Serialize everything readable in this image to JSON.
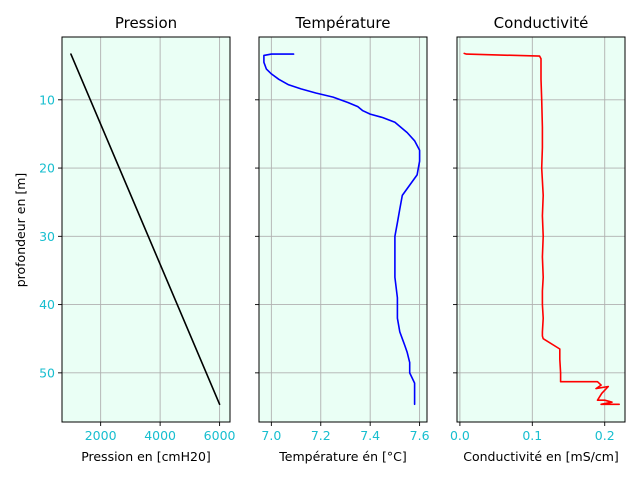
{
  "chart_data": [
    {
      "type": "line",
      "title": "Pression",
      "xlabel": "Pression en [cmH20]",
      "ylabel": "profondeur en [m]",
      "xlim": [
        700,
        6350
      ],
      "ylim": [
        57.2,
        0.8
      ],
      "y_inverted": true,
      "xticks": [
        2000,
        4000,
        6000
      ],
      "yticks": [
        10,
        20,
        30,
        40,
        50
      ],
      "show_ytick_labels": true,
      "grid": true,
      "background_color": "#eafff5",
      "tick_label_color": "#17becf",
      "series": [
        {
          "color": "#000000",
          "x": [
            1000,
            6000
          ],
          "y": [
            3.3,
            54.6
          ]
        }
      ]
    },
    {
      "type": "line",
      "title": "Température",
      "xlabel": "Température én [°C]",
      "ylabel": "",
      "xlim": [
        6.95,
        7.63
      ],
      "ylim": [
        57.2,
        0.8
      ],
      "y_inverted": true,
      "xticks": [
        7.0,
        7.2,
        7.4,
        7.6
      ],
      "xtick_labels": [
        "7.0",
        "7.2",
        "7.4",
        "7.6"
      ],
      "yticks": [
        10,
        20,
        30,
        40,
        50
      ],
      "show_ytick_labels": false,
      "grid": true,
      "background_color": "#eafff5",
      "tick_label_color": "#17becf",
      "series": [
        {
          "color": "#0000ff",
          "x": [
            7.09,
            7.04,
            7.0,
            6.97,
            6.97,
            6.98,
            7.0,
            7.03,
            7.07,
            7.12,
            7.18,
            7.25,
            7.31,
            7.35,
            7.37,
            7.4,
            7.45,
            7.5,
            7.55,
            7.58,
            7.6,
            7.6,
            7.59,
            7.56,
            7.53,
            7.52,
            7.51,
            7.5,
            7.5,
            7.5,
            7.51,
            7.51,
            7.52,
            7.53,
            7.54,
            7.55,
            7.56,
            7.56,
            7.58,
            7.58,
            7.58
          ],
          "y": [
            3.3,
            3.3,
            3.3,
            3.5,
            4.5,
            5.5,
            6.2,
            7.0,
            7.8,
            8.4,
            9.0,
            9.6,
            10.4,
            11.0,
            11.6,
            12.1,
            12.6,
            13.3,
            14.8,
            16.0,
            17.4,
            19.0,
            21.0,
            22.5,
            24.0,
            26.0,
            28.0,
            30.0,
            33.0,
            36.0,
            39.0,
            42.0,
            44.0,
            45.0,
            46.0,
            47.0,
            48.5,
            50.0,
            51.5,
            53.0,
            54.6
          ]
        }
      ]
    },
    {
      "type": "line",
      "title": "Conductivité",
      "xlabel": "Conductivité en [mS/cm]",
      "ylabel": "",
      "xlim": [
        -0.004,
        0.228
      ],
      "ylim": [
        57.2,
        0.8
      ],
      "y_inverted": true,
      "xticks": [
        0.0,
        0.1,
        0.2
      ],
      "xtick_labels": [
        "0.0",
        "0.1",
        "0.2"
      ],
      "yticks": [
        10,
        20,
        30,
        40,
        50
      ],
      "show_ytick_labels": false,
      "grid": true,
      "background_color": "#eafff5",
      "tick_label_color": "#17becf",
      "series": [
        {
          "color": "#ff0000",
          "x": [
            0.006,
            0.009,
            0.11,
            0.112,
            0.112,
            0.113,
            0.114,
            0.114,
            0.113,
            0.115,
            0.114,
            0.115,
            0.114,
            0.115,
            0.114,
            0.114,
            0.115,
            0.114,
            0.114,
            0.115,
            0.138,
            0.138,
            0.139,
            0.139,
            0.19,
            0.195,
            0.188,
            0.205,
            0.196,
            0.19,
            0.2,
            0.21,
            0.195,
            0.22
          ],
          "y": [
            3.2,
            3.3,
            3.6,
            4.0,
            7.0,
            10.0,
            14.0,
            17.0,
            20.0,
            24.0,
            27.0,
            30.0,
            33.0,
            36.0,
            38.0,
            40.0,
            42.0,
            44.0,
            44.6,
            45.0,
            46.5,
            48.0,
            50.0,
            51.3,
            51.3,
            51.8,
            52.3,
            52.0,
            53.0,
            54.0,
            54.0,
            54.3,
            54.6,
            54.6
          ]
        }
      ]
    }
  ]
}
